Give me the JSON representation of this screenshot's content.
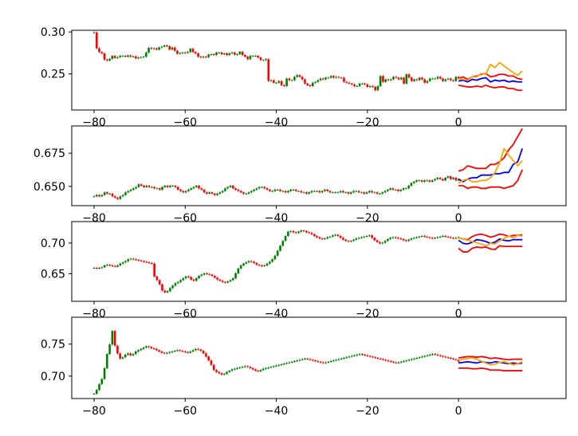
{
  "colors": {
    "up_candle": "#008000",
    "down_candle": "#ff0000",
    "forecast_mean": "#0000ff",
    "forecast_bounds": "#ff0000",
    "forecast_actual": "#ffa500",
    "axes": "#000000",
    "background": "#ffffff"
  },
  "chart_data": [
    {
      "type": "candlestick",
      "title": "",
      "xlabel": "",
      "ylabel": "",
      "xlim": [
        -84.9,
        23.6
      ],
      "ylim": [
        0.207,
        0.302
      ],
      "xticks": [
        -80,
        -60,
        -40,
        -20,
        0
      ],
      "xtick_labels": [
        "−80",
        "−60",
        "−40",
        "−20",
        "0"
      ],
      "yticks": [
        0.25,
        0.3
      ],
      "ytick_labels": [
        "0.25",
        "0.30"
      ],
      "grid": false,
      "candles": {
        "x_start": -80,
        "close": [
          0.2995,
          0.2805,
          0.276,
          0.2745,
          0.267,
          0.266,
          0.268,
          0.2715,
          0.269,
          0.27,
          0.2715,
          0.2715,
          0.2705,
          0.272,
          0.2705,
          0.271,
          0.2685,
          0.2695,
          0.27,
          0.2705,
          0.2755,
          0.281,
          0.28,
          0.2805,
          0.279,
          0.2815,
          0.2825,
          0.284,
          0.283,
          0.279,
          0.2815,
          0.2775,
          0.274,
          0.275,
          0.2755,
          0.275,
          0.276,
          0.28,
          0.276,
          0.2745,
          0.2705,
          0.2695,
          0.2705,
          0.27,
          0.273,
          0.2735,
          0.2725,
          0.2755,
          0.2755,
          0.2735,
          0.2745,
          0.2725,
          0.2745,
          0.2755,
          0.273,
          0.2735,
          0.2765,
          0.2725,
          0.2705,
          0.2675,
          0.2715,
          0.2715,
          0.2715,
          0.2695,
          0.2665,
          0.2665,
          0.2675,
          0.2415,
          0.2425,
          0.2395,
          0.2395,
          0.2415,
          0.2365,
          0.2355,
          0.2445,
          0.2425,
          0.2425,
          0.2465,
          0.2485,
          0.2465,
          0.2435,
          0.2385,
          0.2365,
          0.2355,
          0.2395,
          0.2405,
          0.2425,
          0.2445,
          0.2435,
          0.2455,
          0.2455,
          0.2475,
          0.2455,
          0.2465,
          0.2455,
          0.2455,
          0.2405,
          0.2395,
          0.2385,
          0.2375,
          0.2355,
          0.2355,
          0.2385,
          0.2385,
          0.2375,
          0.2345,
          0.2355,
          0.2345,
          0.2305,
          0.2355,
          0.2475,
          0.2405,
          0.2435,
          0.2425,
          0.2435,
          0.2465,
          0.2455,
          0.2435,
          0.2455,
          0.2385,
          0.2495,
          0.2455,
          0.2415,
          0.2435,
          0.2425,
          0.2455,
          0.2435,
          0.2395,
          0.2415,
          0.2445,
          0.2445,
          0.2445,
          0.2465,
          0.2445,
          0.2415,
          0.2435,
          0.2445,
          0.2425,
          0.2415,
          0.2465,
          0.2445
        ]
      },
      "forecast": {
        "x": [
          0,
          1,
          2,
          3,
          4,
          5,
          6,
          7,
          8,
          9,
          10,
          11,
          12,
          13,
          14
        ],
        "mean": [
          0.2415,
          0.2425,
          0.2405,
          0.2435,
          0.2425,
          0.2445,
          0.2455,
          0.2405,
          0.2425,
          0.2415,
          0.2425,
          0.2405,
          0.2415,
          0.2405,
          0.2405
        ],
        "lower": [
          0.2365,
          0.2355,
          0.2345,
          0.2345,
          0.2355,
          0.2345,
          0.2365,
          0.2345,
          0.2335,
          0.2345,
          0.2345,
          0.2325,
          0.2325,
          0.2305,
          0.2305
        ],
        "upper": [
          0.2445,
          0.2465,
          0.2435,
          0.2465,
          0.2475,
          0.2495,
          0.2505,
          0.2465,
          0.2475,
          0.2495,
          0.2495,
          0.2475,
          0.2475,
          0.2445,
          0.2435
        ],
        "actual": [
          0.2445,
          0.2435,
          0.2425,
          0.2465,
          0.2465,
          0.2505,
          0.2495,
          0.2615,
          0.2575,
          0.2635,
          0.2595,
          0.2555,
          0.2515,
          0.2485,
          0.2535
        ]
      }
    },
    {
      "type": "candlestick",
      "title": "",
      "xlabel": "",
      "ylabel": "",
      "xlim": [
        -84.9,
        23.6
      ],
      "ylim": [
        0.6355,
        0.6955
      ],
      "xticks": [
        -80,
        -60,
        -40,
        -20,
        0
      ],
      "xtick_labels": [
        "−80",
        "−60",
        "−40",
        "−20",
        "0"
      ],
      "yticks": [
        0.65,
        0.675
      ],
      "ytick_labels": [
        "0.650",
        "0.675"
      ],
      "grid": false,
      "candles": {
        "x_start": -80,
        "close": [
          0.6425,
          0.6435,
          0.6425,
          0.6435,
          0.6455,
          0.6445,
          0.6445,
          0.6425,
          0.6415,
          0.6405,
          0.6425,
          0.6435,
          0.6455,
          0.6465,
          0.6475,
          0.6485,
          0.6495,
          0.6515,
          0.6505,
          0.6495,
          0.6505,
          0.6495,
          0.6495,
          0.6485,
          0.6485,
          0.6475,
          0.6495,
          0.6505,
          0.6495,
          0.6505,
          0.6505,
          0.6495,
          0.6475,
          0.6465,
          0.6455,
          0.6465,
          0.6475,
          0.6485,
          0.6495,
          0.6505,
          0.6485,
          0.6475,
          0.6455,
          0.6445,
          0.6455,
          0.6445,
          0.6435,
          0.6445,
          0.6455,
          0.6465,
          0.6485,
          0.6495,
          0.6505,
          0.6485,
          0.6475,
          0.6465,
          0.6455,
          0.6445,
          0.6445,
          0.6455,
          0.6465,
          0.6475,
          0.6485,
          0.6495,
          0.6495,
          0.6485,
          0.6475,
          0.6465,
          0.6465,
          0.6475,
          0.6475,
          0.6465,
          0.6465,
          0.6455,
          0.6465,
          0.6475,
          0.6475,
          0.6465,
          0.6465,
          0.6455,
          0.6455,
          0.6445,
          0.6455,
          0.6465,
          0.6465,
          0.6465,
          0.6455,
          0.6465,
          0.6475,
          0.6465,
          0.6455,
          0.6455,
          0.6455,
          0.6455,
          0.6465,
          0.6455,
          0.6455,
          0.6445,
          0.6455,
          0.6465,
          0.6465,
          0.6455,
          0.6455,
          0.6445,
          0.6455,
          0.6465,
          0.6455,
          0.6455,
          0.6445,
          0.6445,
          0.6455,
          0.6465,
          0.6475,
          0.6485,
          0.6475,
          0.6475,
          0.6465,
          0.6475,
          0.6485,
          0.6485,
          0.6505,
          0.6525,
          0.6535,
          0.6545,
          0.6545,
          0.6535,
          0.6545,
          0.6545,
          0.6535,
          0.6545,
          0.6555,
          0.6565,
          0.6555,
          0.6545,
          0.6565,
          0.6575,
          0.6555,
          0.6565,
          0.6545,
          0.6555
        ]
      },
      "forecast": {
        "x": [
          0,
          1,
          2,
          3,
          4,
          5,
          6,
          7,
          8,
          9,
          10,
          11,
          12,
          13,
          14
        ],
        "mean": [
          0.6555,
          0.6535,
          0.6555,
          0.6565,
          0.6565,
          0.6585,
          0.6585,
          0.6585,
          0.6595,
          0.6595,
          0.6605,
          0.6605,
          0.6665,
          0.6685,
          0.6785
        ],
        "lower": [
          0.6505,
          0.6505,
          0.6485,
          0.6495,
          0.6495,
          0.6485,
          0.6485,
          0.6495,
          0.6495,
          0.6495,
          0.6485,
          0.6495,
          0.6505,
          0.6545,
          0.6625
        ],
        "upper": [
          0.6615,
          0.6625,
          0.6655,
          0.6645,
          0.6635,
          0.6635,
          0.6635,
          0.6665,
          0.6665,
          0.6685,
          0.6715,
          0.6775,
          0.6815,
          0.6875,
          0.6935
        ],
        "actual": [
          0.6525,
          0.6545,
          0.6555,
          0.6535,
          0.6535,
          0.6545,
          0.6545,
          0.6565,
          0.6605,
          0.6675,
          0.6785,
          0.6735,
          0.6695,
          0.6655,
          0.6695
        ]
      }
    },
    {
      "type": "candlestick",
      "title": "",
      "xlabel": "",
      "ylabel": "",
      "xlim": [
        -84.9,
        23.6
      ],
      "ylim": [
        0.605,
        0.735
      ],
      "xticks": [
        -80,
        -60,
        -40,
        -20,
        0
      ],
      "xtick_labels": [
        "−80",
        "−60",
        "−40",
        "−20",
        "0"
      ],
      "yticks": [
        0.65,
        0.7
      ],
      "ytick_labels": [
        "0.65",
        "0.70"
      ],
      "grid": false,
      "candles": {
        "x_start": -80,
        "close": [
          0.6595,
          0.6585,
          0.6595,
          0.6605,
          0.6635,
          0.6645,
          0.6635,
          0.6625,
          0.6615,
          0.6635,
          0.6665,
          0.6685,
          0.6705,
          0.6735,
          0.6745,
          0.6735,
          0.6725,
          0.6715,
          0.6705,
          0.6695,
          0.6685,
          0.6675,
          0.6665,
          0.6455,
          0.6395,
          0.6325,
          0.6225,
          0.6195,
          0.6215,
          0.6265,
          0.6305,
          0.6345,
          0.6365,
          0.6395,
          0.6425,
          0.6455,
          0.6445,
          0.6405,
          0.6385,
          0.6425,
          0.6465,
          0.6485,
          0.6505,
          0.6495,
          0.6485,
          0.6465,
          0.6435,
          0.6405,
          0.6385,
          0.6365,
          0.6355,
          0.6375,
          0.6395,
          0.6425,
          0.6505,
          0.6585,
          0.6635,
          0.6665,
          0.6685,
          0.6705,
          0.6695,
          0.6675,
          0.6645,
          0.6635,
          0.6625,
          0.6635,
          0.6665,
          0.6695,
          0.6735,
          0.6795,
          0.6875,
          0.6955,
          0.7035,
          0.7115,
          0.7185,
          0.7195,
          0.7175,
          0.7165,
          0.7185,
          0.7205,
          0.7195,
          0.7175,
          0.7165,
          0.7145,
          0.7115,
          0.7095,
          0.7075,
          0.7065,
          0.7075,
          0.7095,
          0.7105,
          0.7125,
          0.7135,
          0.7115,
          0.7085,
          0.7055,
          0.7035,
          0.7025,
          0.7035,
          0.7055,
          0.7075,
          0.7085,
          0.7095,
          0.7105,
          0.7115,
          0.7125,
          0.7085,
          0.7045,
          0.7015,
          0.6995,
          0.7005,
          0.7035,
          0.7065,
          0.7085,
          0.7095,
          0.7085,
          0.7075,
          0.7065,
          0.7045,
          0.7035,
          0.7055,
          0.7075,
          0.7085,
          0.7095,
          0.7105,
          0.7115,
          0.7105,
          0.7095,
          0.7085,
          0.7075,
          0.7085,
          0.7095,
          0.7105,
          0.7115,
          0.7105,
          0.7095,
          0.7085,
          0.7075,
          0.7085,
          0.7095
        ]
      },
      "forecast": {
        "x": [
          0,
          1,
          2,
          3,
          4,
          5,
          6,
          7,
          8,
          9,
          10,
          11,
          12,
          13,
          14
        ],
        "mean": [
          0.7045,
          0.6995,
          0.6985,
          0.7015,
          0.7055,
          0.7045,
          0.7025,
          0.6995,
          0.7015,
          0.7065,
          0.7045,
          0.7035,
          0.7055,
          0.7055,
          0.7055
        ],
        "lower": [
          0.6915,
          0.6855,
          0.6855,
          0.6915,
          0.6935,
          0.6925,
          0.6935,
          0.6905,
          0.6895,
          0.6955,
          0.6945,
          0.6945,
          0.6945,
          0.6945,
          0.6945
        ],
        "upper": [
          0.7085,
          0.7065,
          0.7055,
          0.7105,
          0.7135,
          0.7145,
          0.7125,
          0.7095,
          0.7115,
          0.7145,
          0.7135,
          0.7105,
          0.7125,
          0.7125,
          0.7135
        ],
        "actual": [
          0.7085,
          0.7065,
          0.7045,
          0.7025,
          0.7005,
          0.6985,
          0.6955,
          0.6995,
          0.6985,
          0.7035,
          0.7075,
          0.7115,
          0.7085,
          0.7125,
          0.7115
        ]
      }
    },
    {
      "type": "candlestick",
      "title": "",
      "xlabel": "",
      "ylabel": "",
      "xlim": [
        -84.9,
        23.6
      ],
      "ylim": [
        0.665,
        0.792
      ],
      "xticks": [
        -80,
        -60,
        -40,
        -20,
        0
      ],
      "xtick_labels": [
        "−80",
        "−60",
        "−40",
        "−20",
        "0"
      ],
      "yticks": [
        0.7,
        0.75
      ],
      "ytick_labels": [
        "0.70",
        "0.75"
      ],
      "grid": false,
      "candles": {
        "x_start": -80,
        "close": [
          0.6725,
          0.6785,
          0.6875,
          0.6955,
          0.7125,
          0.7345,
          0.7495,
          0.7705,
          0.7475,
          0.7355,
          0.7275,
          0.7295,
          0.7335,
          0.7355,
          0.7325,
          0.7345,
          0.7385,
          0.7405,
          0.7425,
          0.7445,
          0.7465,
          0.7455,
          0.7435,
          0.7425,
          0.7405,
          0.7385,
          0.7365,
          0.7355,
          0.7365,
          0.7375,
          0.7385,
          0.7395,
          0.7405,
          0.7395,
          0.7385,
          0.7375,
          0.7365,
          0.7385,
          0.7405,
          0.7425,
          0.7415,
          0.7395,
          0.7355,
          0.7305,
          0.7245,
          0.7175,
          0.7095,
          0.7065,
          0.7045,
          0.7025,
          0.7035,
          0.7065,
          0.7085,
          0.7105,
          0.7115,
          0.7125,
          0.7135,
          0.7145,
          0.7155,
          0.7145,
          0.7125,
          0.7105,
          0.7085,
          0.7075,
          0.7095,
          0.7115,
          0.7125,
          0.7135,
          0.7145,
          0.7155,
          0.7165,
          0.7175,
          0.7185,
          0.7195,
          0.7205,
          0.7215,
          0.7225,
          0.7235,
          0.7245,
          0.7255,
          0.7265,
          0.7275,
          0.7265,
          0.7255,
          0.7245,
          0.7235,
          0.7225,
          0.7215,
          0.7205,
          0.7215,
          0.7225,
          0.7235,
          0.7245,
          0.7255,
          0.7265,
          0.7275,
          0.7285,
          0.7295,
          0.7305,
          0.7315,
          0.7325,
          0.7335,
          0.7345,
          0.7335,
          0.7325,
          0.7315,
          0.7305,
          0.7295,
          0.7285,
          0.7275,
          0.7265,
          0.7255,
          0.7245,
          0.7235,
          0.7225,
          0.7215,
          0.7205,
          0.7215,
          0.7225,
          0.7235,
          0.7245,
          0.7255,
          0.7265,
          0.7275,
          0.7285,
          0.7295,
          0.7305,
          0.7315,
          0.7325,
          0.7335,
          0.7345,
          0.7335,
          0.7325,
          0.7315,
          0.7305,
          0.7295,
          0.7285,
          0.7275,
          0.7265,
          0.7255,
          0.7225
        ]
      },
      "forecast": {
        "x": [
          0,
          1,
          2,
          3,
          4,
          5,
          6,
          7,
          8,
          9,
          10,
          11,
          12,
          13,
          14
        ],
        "mean": [
          0.7205,
          0.7215,
          0.7225,
          0.7215,
          0.7205,
          0.7225,
          0.7215,
          0.7205,
          0.7225,
          0.7215,
          0.7205,
          0.7195,
          0.7205,
          0.7195,
          0.7205
        ],
        "lower": [
          0.7125,
          0.7125,
          0.7125,
          0.7115,
          0.7115,
          0.7125,
          0.7115,
          0.7095,
          0.7095,
          0.7095,
          0.7085,
          0.7085,
          0.7085,
          0.7085,
          0.7085
        ],
        "upper": [
          0.7285,
          0.7295,
          0.7305,
          0.7305,
          0.7295,
          0.7305,
          0.7295,
          0.7275,
          0.7285,
          0.7275,
          0.7265,
          0.7255,
          0.7265,
          0.7265,
          0.7265
        ],
        "actual": [
          0.7245,
          0.7265,
          0.7275,
          0.7285,
          0.7265,
          0.7235,
          0.7205,
          0.7175,
          0.7185,
          0.7215,
          0.7225,
          0.7205,
          0.7175,
          0.7195,
          0.7225
        ]
      }
    }
  ]
}
